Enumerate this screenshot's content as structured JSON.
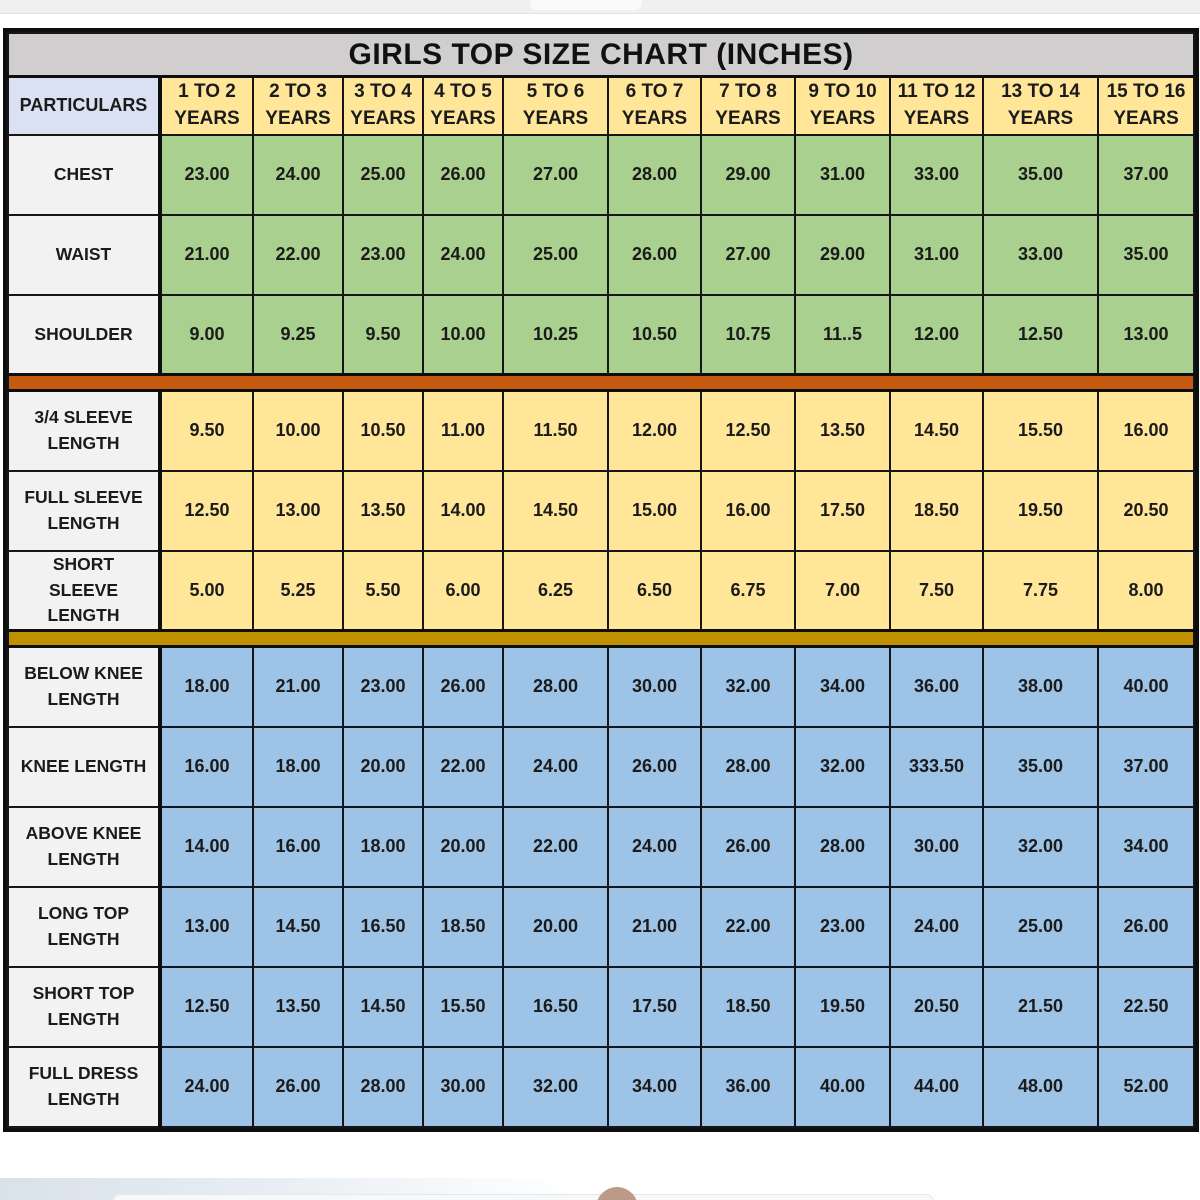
{
  "title": "GIRLS TOP SIZE CHART (INCHES)",
  "header": {
    "particulars_label": "PARTICULARS",
    "unit_label": "YEARS",
    "age_ranges": [
      "1 TO 2",
      "2 TO 3",
      "3 TO 4",
      "4 TO 5",
      "5 TO 6",
      "6 TO 7",
      "7 TO 8",
      "9 TO 10",
      "11 TO 12",
      "13 TO 14",
      "15 TO 16"
    ]
  },
  "sections": [
    {
      "id": "body-measurements",
      "bg": "#a9d08e",
      "rows": [
        {
          "label": "CHEST",
          "values": [
            "23.00",
            "24.00",
            "25.00",
            "26.00",
            "27.00",
            "28.00",
            "29.00",
            "31.00",
            "33.00",
            "35.00",
            "37.00"
          ]
        },
        {
          "label": "WAIST",
          "values": [
            "21.00",
            "22.00",
            "23.00",
            "24.00",
            "25.00",
            "26.00",
            "27.00",
            "29.00",
            "31.00",
            "33.00",
            "35.00"
          ]
        },
        {
          "label": "SHOULDER",
          "values": [
            "9.00",
            "9.25",
            "9.50",
            "10.00",
            "10.25",
            "10.50",
            "10.75",
            "11..5",
            "12.00",
            "12.50",
            "13.00"
          ]
        }
      ]
    },
    {
      "id": "sleeve-lengths",
      "bg": "#ffe699",
      "rows": [
        {
          "label": "3/4 SLEEVE LENGTH",
          "values": [
            "9.50",
            "10.00",
            "10.50",
            "11.00",
            "11.50",
            "12.00",
            "12.50",
            "13.50",
            "14.50",
            "15.50",
            "16.00"
          ]
        },
        {
          "label": "FULL SLEEVE LENGTH",
          "values": [
            "12.50",
            "13.00",
            "13.50",
            "14.00",
            "14.50",
            "15.00",
            "16.00",
            "17.50",
            "18.50",
            "19.50",
            "20.50"
          ]
        },
        {
          "label": "SHORT SLEEVE LENGTH",
          "values": [
            "5.00",
            "5.25",
            "5.50",
            "6.00",
            "6.25",
            "6.50",
            "6.75",
            "7.00",
            "7.50",
            "7.75",
            "8.00"
          ]
        }
      ]
    },
    {
      "id": "garment-lengths",
      "bg": "#9dc3e6",
      "rows": [
        {
          "label": "BELOW KNEE LENGTH",
          "values": [
            "18.00",
            "21.00",
            "23.00",
            "26.00",
            "28.00",
            "30.00",
            "32.00",
            "34.00",
            "36.00",
            "38.00",
            "40.00"
          ]
        },
        {
          "label": "KNEE LENGTH",
          "values": [
            "16.00",
            "18.00",
            "20.00",
            "22.00",
            "24.00",
            "26.00",
            "28.00",
            "32.00",
            "333.50",
            "35.00",
            "37.00"
          ]
        },
        {
          "label": "ABOVE KNEE LENGTH",
          "values": [
            "14.00",
            "16.00",
            "18.00",
            "20.00",
            "22.00",
            "24.00",
            "26.00",
            "28.00",
            "30.00",
            "32.00",
            "34.00"
          ]
        },
        {
          "label": "LONG TOP LENGTH",
          "values": [
            "13.00",
            "14.50",
            "16.50",
            "18.50",
            "20.00",
            "21.00",
            "22.00",
            "23.00",
            "24.00",
            "25.00",
            "26.00"
          ]
        },
        {
          "label": "SHORT TOP LENGTH",
          "values": [
            "12.50",
            "13.50",
            "14.50",
            "15.50",
            "16.50",
            "17.50",
            "18.50",
            "19.50",
            "20.50",
            "21.50",
            "22.50"
          ]
        },
        {
          "label": "FULL DRESS LENGTH",
          "values": [
            "24.00",
            "26.00",
            "28.00",
            "30.00",
            "32.00",
            "34.00",
            "36.00",
            "40.00",
            "44.00",
            "48.00",
            "52.00"
          ]
        }
      ]
    }
  ],
  "dividers": [
    {
      "color": "#c55a11"
    },
    {
      "color": "#bf9000"
    }
  ],
  "colors": {
    "title-bg": "#d0cece",
    "header-bg": "#ffe699",
    "particulars-bg": "#d9e1f2",
    "label-bg": "#f2f2f2",
    "table-border": "#161616"
  }
}
